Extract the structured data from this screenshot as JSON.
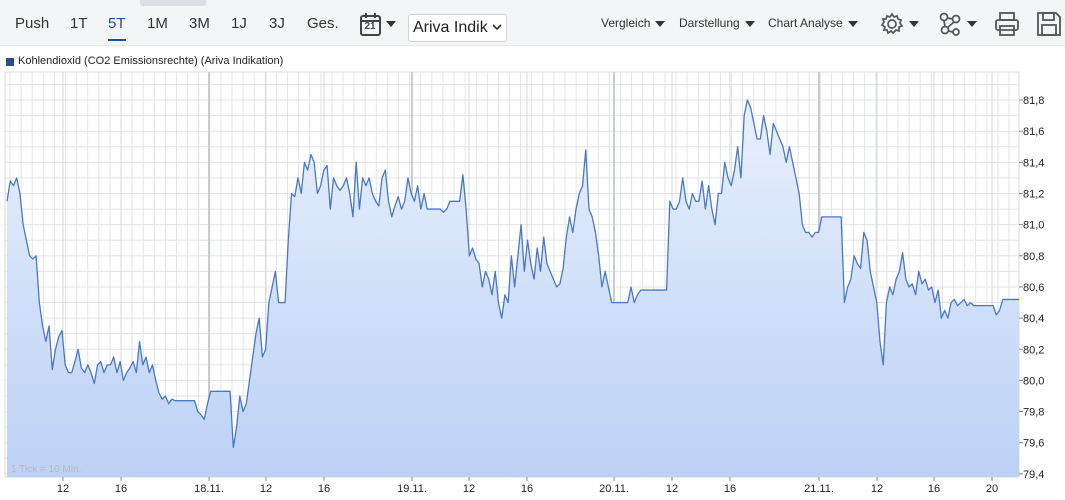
{
  "toolbar": {
    "ranges": [
      "Push",
      "1T",
      "5T",
      "1M",
      "3M",
      "1J",
      "3J",
      "Ges."
    ],
    "active_range": "5T",
    "calendar_day": "21",
    "source_select": "Ariva Indik",
    "menus": [
      "Vergleich",
      "Darstellung",
      "Chart Analyse"
    ],
    "icons": [
      "settings-icon",
      "network-icon",
      "print-icon",
      "save-icon"
    ]
  },
  "legend": {
    "label": "Kohlendioxid (CO2 Emissionsrechte) (Ariva Indikation)",
    "color": "#2c4e8c"
  },
  "tick_note": "1 Tick = 10 Min.",
  "colors": {
    "line": "#4a78c4",
    "fill_top": "#e8f0fd",
    "fill_bottom": "#bcd1f5",
    "grid": "#e1e4e8"
  },
  "chart_data": {
    "type": "area",
    "title": "",
    "series": [
      {
        "name": "Kohlendioxid (CO2 Emissionsrechte) (Ariva Indikation)",
        "values": [
          81.15,
          81.28,
          81.25,
          81.3,
          81.2,
          81.0,
          80.9,
          80.8,
          80.78,
          80.8,
          80.5,
          80.35,
          80.25,
          80.35,
          80.07,
          80.2,
          80.28,
          80.32,
          80.1,
          80.05,
          80.05,
          80.12,
          80.2,
          80.08,
          80.05,
          80.1,
          80.05,
          79.98,
          80.1,
          80.12,
          80.05,
          80.1,
          80.1,
          80.15,
          80.05,
          80.12,
          80.0,
          80.05,
          80.08,
          80.12,
          80.05,
          80.25,
          80.1,
          80.15,
          80.05,
          80.1,
          80.0,
          79.92,
          79.88,
          79.9,
          79.85,
          79.88,
          79.87,
          79.87,
          79.87,
          79.87,
          79.87,
          79.87,
          79.87,
          79.8,
          79.78,
          79.75,
          79.85,
          79.93,
          79.93,
          79.93,
          79.93,
          79.93,
          79.93,
          79.93,
          79.57,
          79.7,
          79.9,
          79.8,
          79.85,
          80.0,
          80.15,
          80.3,
          80.4,
          80.15,
          80.2,
          80.5,
          80.6,
          80.7,
          80.5,
          80.5,
          80.5,
          80.9,
          81.2,
          81.18,
          81.3,
          81.2,
          81.4,
          81.35,
          81.45,
          81.4,
          81.2,
          81.25,
          81.35,
          81.38,
          81.1,
          81.3,
          81.25,
          81.22,
          81.25,
          81.3,
          81.2,
          81.05,
          81.4,
          81.1,
          81.3,
          81.25,
          81.3,
          81.2,
          81.15,
          81.12,
          81.3,
          81.35,
          81.15,
          81.05,
          81.12,
          81.18,
          81.1,
          81.15,
          81.3,
          81.2,
          81.15,
          81.25,
          81.1,
          81.2,
          81.1,
          81.1,
          81.1,
          81.1,
          81.1,
          81.08,
          81.1,
          81.15,
          81.15,
          81.15,
          81.15,
          81.32,
          81.1,
          80.8,
          80.85,
          80.78,
          80.75,
          80.6,
          80.7,
          80.65,
          80.55,
          80.7,
          80.5,
          80.4,
          80.55,
          80.5,
          80.8,
          80.6,
          80.8,
          81.0,
          80.7,
          80.9,
          80.75,
          80.65,
          80.85,
          80.7,
          80.92,
          80.75,
          80.7,
          80.65,
          80.6,
          80.62,
          80.72,
          80.92,
          81.05,
          80.95,
          81.1,
          81.2,
          81.25,
          81.48,
          81.1,
          81.05,
          80.95,
          80.8,
          80.6,
          80.7,
          80.6,
          80.5,
          80.5,
          80.5,
          80.5,
          80.5,
          80.5,
          80.6,
          80.5,
          80.55,
          80.58,
          80.58,
          80.58,
          80.58,
          80.58,
          80.58,
          80.58,
          80.58,
          80.58,
          81.15,
          81.1,
          81.1,
          81.15,
          81.3,
          81.15,
          81.1,
          81.2,
          81.15,
          81.15,
          81.28,
          81.1,
          81.25,
          81.1,
          81.0,
          81.2,
          81.2,
          81.4,
          81.3,
          81.25,
          81.35,
          81.5,
          81.3,
          81.7,
          81.8,
          81.75,
          81.65,
          81.55,
          81.55,
          81.7,
          81.6,
          81.45,
          81.65,
          81.6,
          81.55,
          81.5,
          81.4,
          81.5,
          81.4,
          81.3,
          81.2,
          81.0,
          80.95,
          80.95,
          80.92,
          80.95,
          80.95,
          81.05,
          81.05,
          81.05,
          81.05,
          81.05,
          81.05,
          81.05,
          80.5,
          80.6,
          80.65,
          80.8,
          80.75,
          80.72,
          80.95,
          80.9,
          80.7,
          80.6,
          80.5,
          80.25,
          80.1,
          80.5,
          80.6,
          80.55,
          80.65,
          80.7,
          80.82,
          80.65,
          80.6,
          80.62,
          80.55,
          80.7,
          80.62,
          80.65,
          80.58,
          80.6,
          80.5,
          80.58,
          80.4,
          80.45,
          80.4,
          80.5,
          80.52,
          80.48,
          80.5,
          80.52,
          80.48,
          80.5,
          80.48,
          80.48,
          80.48,
          80.48,
          80.48,
          80.48,
          80.48,
          80.42,
          80.45,
          80.52,
          80.52,
          80.52,
          80.52,
          80.52,
          80.52
        ]
      }
    ],
    "x_tick_labels": [
      "12",
      "16",
      "18.11.",
      "12",
      "16",
      "19.11.",
      "12",
      "16",
      "20.11.",
      "12",
      "16",
      "21.11.",
      "12",
      "16",
      "20"
    ],
    "y_tick_labels": [
      "81,8",
      "81,6",
      "81,4",
      "81,2",
      "81,0",
      "80,8",
      "80,6",
      "80,4",
      "80,2",
      "80,0",
      "79,8",
      "79,6",
      "79,4"
    ],
    "ylim": [
      79.38,
      81.98
    ],
    "grid": true,
    "legend_position": "top-left",
    "xlabel": "",
    "ylabel": ""
  }
}
